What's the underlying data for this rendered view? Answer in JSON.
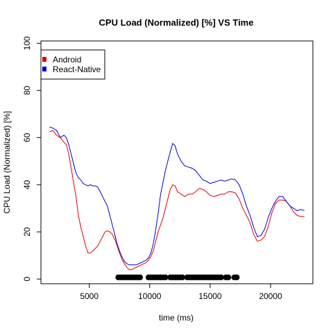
{
  "chart_data": {
    "type": "line",
    "title": "CPU Load (Normalized) [%]  VS  Time",
    "xlabel": "time (ms)",
    "ylabel": "CPU Load (Normalized) [%]",
    "xlim": [
      1000,
      23500
    ],
    "ylim": [
      -2,
      101
    ],
    "xticks": [
      5000,
      10000,
      15000,
      20000
    ],
    "yticks": [
      0,
      20,
      40,
      60,
      80,
      100
    ],
    "legend_position": "top-left",
    "grid": false,
    "series": [
      {
        "name": "Android",
        "color": "#DF0000",
        "x": [
          1700,
          2000,
          2300,
          2600,
          2900,
          3100,
          3300,
          3500,
          3700,
          3900,
          4100,
          4300,
          4500,
          4700,
          4900,
          5100,
          5300,
          5500,
          5700,
          5900,
          6100,
          6300,
          6500,
          6700,
          6900,
          7100,
          7300,
          7500,
          7700,
          7900,
          8100,
          8300,
          8500,
          8700,
          8900,
          9100,
          9300,
          9500,
          9700,
          9900,
          10100,
          10300,
          10500,
          10700,
          10900,
          11100,
          11300,
          11500,
          11700,
          11900,
          12100,
          12300,
          12600,
          12900,
          13200,
          13500,
          13800,
          14100,
          14400,
          14700,
          15000,
          15300,
          15600,
          15900,
          16200,
          16500,
          16800,
          17100,
          17400,
          17700,
          18000,
          18300,
          18600,
          18900,
          19200,
          19500,
          19800,
          20100,
          20400,
          20700,
          21000,
          21300,
          21600,
          21900,
          22200,
          22500,
          22800
        ],
        "values": [
          62.5,
          63,
          61,
          60,
          58,
          57,
          53,
          47,
          41,
          35,
          27,
          22,
          18,
          14,
          11,
          11,
          12,
          13,
          14,
          16,
          18,
          20,
          20.5,
          20,
          19,
          17,
          14,
          11,
          8.5,
          6.5,
          5,
          4,
          4,
          4.5,
          5,
          5.5,
          6,
          6.5,
          7,
          8,
          9.5,
          12,
          16,
          20,
          23,
          26,
          30,
          34,
          38,
          40,
          39.5,
          37,
          36,
          35,
          36,
          36,
          37,
          38.5,
          38,
          37,
          35.5,
          35,
          35.5,
          36,
          36,
          37,
          37,
          36.5,
          34,
          30,
          27,
          24,
          19,
          16,
          16.5,
          18,
          22,
          28,
          32,
          33.5,
          33.5,
          33,
          31,
          28.5,
          27,
          26.5,
          26.5
        ]
      },
      {
        "name": "React-Native",
        "color": "#0000CD",
        "x": [
          1700,
          2000,
          2300,
          2600,
          2900,
          3100,
          3300,
          3500,
          3700,
          3900,
          4100,
          4300,
          4500,
          4700,
          4900,
          5100,
          5300,
          5500,
          5700,
          5900,
          6100,
          6300,
          6500,
          6700,
          6900,
          7100,
          7300,
          7500,
          7700,
          7900,
          8100,
          8300,
          8500,
          8700,
          8900,
          9100,
          9300,
          9500,
          9700,
          9900,
          10100,
          10300,
          10500,
          10700,
          10900,
          11100,
          11300,
          11500,
          11700,
          11900,
          12100,
          12300,
          12600,
          12900,
          13200,
          13500,
          13800,
          14100,
          14400,
          14700,
          15000,
          15300,
          15600,
          15900,
          16200,
          16500,
          16800,
          17100,
          17400,
          17700,
          18000,
          18300,
          18600,
          18900,
          19200,
          19500,
          19800,
          20100,
          20400,
          20700,
          21000,
          21300,
          21600,
          21900,
          22200,
          22500,
          22800
        ],
        "values": [
          64.5,
          64,
          63,
          60,
          61,
          60,
          57,
          53,
          49,
          45,
          43,
          42,
          40.5,
          40,
          39.5,
          40,
          39.5,
          39.5,
          39,
          37,
          35,
          33,
          31,
          27,
          23,
          19,
          15,
          12,
          9.5,
          7.5,
          6.5,
          6,
          6,
          6,
          6,
          6.5,
          7,
          7.5,
          8,
          9,
          11,
          15,
          21,
          28,
          36,
          41,
          46,
          50,
          54,
          57.5,
          56.5,
          53,
          50,
          48,
          47.5,
          47,
          46,
          44,
          42,
          41.5,
          40.5,
          41,
          41.5,
          42,
          41.5,
          42,
          42.5,
          42,
          40,
          36,
          31,
          27,
          22,
          18,
          18.5,
          21,
          26,
          30,
          33,
          35,
          35,
          33,
          31,
          30,
          29,
          29.5,
          29
        ]
      }
    ],
    "markers": {
      "y": 0.7,
      "x": [
        7400,
        7600,
        7800,
        8000,
        8200,
        8400,
        8600,
        8800,
        9000,
        9200,
        9900,
        10100,
        10300,
        10500,
        10700,
        10900,
        11100,
        11300,
        11700,
        11900,
        12100,
        12300,
        12500,
        12700,
        13100,
        13300,
        13500,
        13700,
        13900,
        14100,
        14300,
        14500,
        14700,
        14900,
        15100,
        15300,
        15500,
        15700,
        15900,
        16300,
        16500,
        17000,
        17200
      ]
    }
  }
}
